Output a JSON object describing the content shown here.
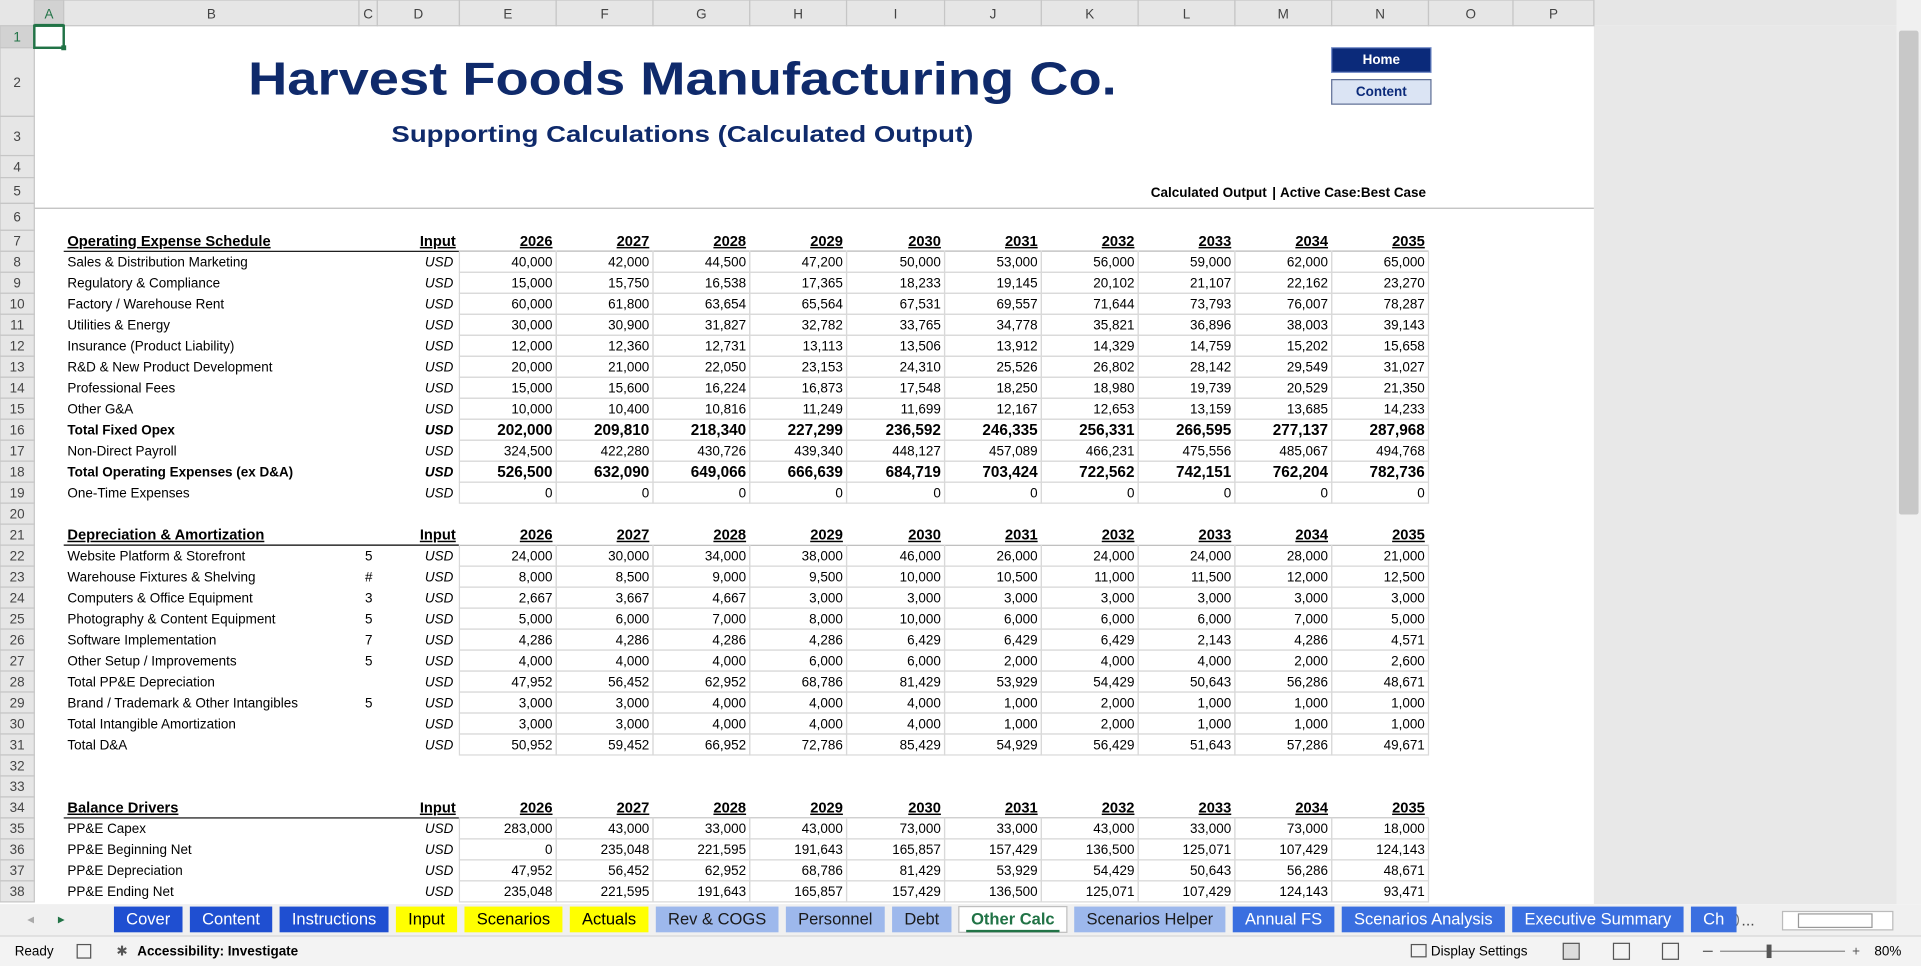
{
  "column_headers": [
    "A",
    "B",
    "C",
    "D",
    "E",
    "F",
    "G",
    "H",
    "I",
    "J",
    "K",
    "L",
    "M",
    "N",
    "O",
    "P"
  ],
  "row_numbers": [
    1,
    2,
    3,
    4,
    5,
    6,
    7,
    8,
    9,
    10,
    11,
    12,
    13,
    14,
    15,
    16,
    17,
    18,
    19,
    20,
    21,
    22,
    23,
    24,
    25,
    26,
    27,
    28,
    29,
    30,
    31,
    32,
    33,
    34,
    35,
    36,
    37,
    38
  ],
  "header": {
    "title": "Harvest Foods Manufacturing Co.",
    "subtitle": "Supporting Calculations (Calculated Output)",
    "status_label": "Calculated Output",
    "separator": "|",
    "active_case": "Active Case:Best Case"
  },
  "buttons": [
    "Home",
    "Content"
  ],
  "sections": [
    {
      "title": "Operating Expense Schedule",
      "input": "Input",
      "years": [
        2026,
        2027,
        2028,
        2029,
        2030,
        2031,
        2032,
        2033,
        2034,
        2035
      ],
      "rows": [
        {
          "label": "Sales & Distribution Marketing",
          "unit": "USD",
          "values": [
            "40,000",
            "42,000",
            "44,500",
            "47,200",
            "50,000",
            "53,000",
            "56,000",
            "59,000",
            "62,000",
            "65,000"
          ]
        },
        {
          "label": "Regulatory & Compliance",
          "unit": "USD",
          "values": [
            "15,000",
            "15,750",
            "16,538",
            "17,365",
            "18,233",
            "19,145",
            "20,102",
            "21,107",
            "22,162",
            "23,270"
          ]
        },
        {
          "label": "Factory / Warehouse Rent",
          "unit": "USD",
          "values": [
            "60,000",
            "61,800",
            "63,654",
            "65,564",
            "67,531",
            "69,557",
            "71,644",
            "73,793",
            "76,007",
            "78,287"
          ]
        },
        {
          "label": "Utilities & Energy",
          "unit": "USD",
          "values": [
            "30,000",
            "30,900",
            "31,827",
            "32,782",
            "33,765",
            "34,778",
            "35,821",
            "36,896",
            "38,003",
            "39,143"
          ]
        },
        {
          "label": "Insurance (Product Liability)",
          "unit": "USD",
          "values": [
            "12,000",
            "12,360",
            "12,731",
            "13,113",
            "13,506",
            "13,912",
            "14,329",
            "14,759",
            "15,202",
            "15,658"
          ]
        },
        {
          "label": "R&D & New Product Development",
          "unit": "USD",
          "values": [
            "20,000",
            "21,000",
            "22,050",
            "23,153",
            "24,310",
            "25,526",
            "26,802",
            "28,142",
            "29,549",
            "31,027"
          ]
        },
        {
          "label": "Professional Fees",
          "unit": "USD",
          "values": [
            "15,000",
            "15,600",
            "16,224",
            "16,873",
            "17,548",
            "18,250",
            "18,980",
            "19,739",
            "20,529",
            "21,350"
          ]
        },
        {
          "label": "Other G&A",
          "unit": "USD",
          "values": [
            "10,000",
            "10,400",
            "10,816",
            "11,249",
            "11,699",
            "12,167",
            "12,653",
            "13,159",
            "13,685",
            "14,233"
          ]
        },
        {
          "label": "Total Fixed Opex",
          "unit": "USD",
          "bold": true,
          "values": [
            "202,000",
            "209,810",
            "218,340",
            "227,299",
            "236,592",
            "246,335",
            "256,331",
            "266,595",
            "277,137",
            "287,968"
          ]
        },
        {
          "label": "Non-Direct Payroll",
          "unit": "USD",
          "values": [
            "324,500",
            "422,280",
            "430,726",
            "439,340",
            "448,127",
            "457,089",
            "466,231",
            "475,556",
            "485,067",
            "494,768"
          ]
        },
        {
          "label": "Total Operating Expenses (ex D&A)",
          "unit": "USD",
          "bold": true,
          "values": [
            "526,500",
            "632,090",
            "649,066",
            "666,639",
            "684,719",
            "703,424",
            "722,562",
            "742,151",
            "762,204",
            "782,736"
          ]
        },
        {
          "label": "One-Time Expenses",
          "unit": "USD",
          "values": [
            "0",
            "0",
            "0",
            "0",
            "0",
            "0",
            "0",
            "0",
            "0",
            "0"
          ]
        }
      ]
    },
    {
      "title": "Depreciation & Amortization",
      "input": "Input",
      "years": [
        2026,
        2027,
        2028,
        2029,
        2030,
        2031,
        2032,
        2033,
        2034,
        2035
      ],
      "rows": [
        {
          "label": "Website Platform & Storefront",
          "life": "5",
          "unit": "USD",
          "values": [
            "24,000",
            "30,000",
            "34,000",
            "38,000",
            "46,000",
            "26,000",
            "24,000",
            "24,000",
            "28,000",
            "21,000"
          ]
        },
        {
          "label": "Warehouse Fixtures & Shelving",
          "life": "#",
          "unit": "USD",
          "values": [
            "8,000",
            "8,500",
            "9,000",
            "9,500",
            "10,000",
            "10,500",
            "11,000",
            "11,500",
            "12,000",
            "12,500"
          ]
        },
        {
          "label": "Computers & Office Equipment",
          "life": "3",
          "unit": "USD",
          "values": [
            "2,667",
            "3,667",
            "4,667",
            "3,000",
            "3,000",
            "3,000",
            "3,000",
            "3,000",
            "3,000",
            "3,000"
          ]
        },
        {
          "label": "Photography & Content Equipment",
          "life": "5",
          "unit": "USD",
          "values": [
            "5,000",
            "6,000",
            "7,000",
            "8,000",
            "10,000",
            "6,000",
            "6,000",
            "6,000",
            "7,000",
            "5,000"
          ]
        },
        {
          "label": "Software Implementation",
          "life": "7",
          "unit": "USD",
          "values": [
            "4,286",
            "4,286",
            "4,286",
            "4,286",
            "6,429",
            "6,429",
            "6,429",
            "2,143",
            "4,286",
            "4,571"
          ]
        },
        {
          "label": "Other Setup / Improvements",
          "life": "5",
          "unit": "USD",
          "values": [
            "4,000",
            "4,000",
            "4,000",
            "6,000",
            "6,000",
            "2,000",
            "4,000",
            "4,000",
            "2,000",
            "2,600"
          ]
        },
        {
          "label": "Total PP&E Depreciation",
          "unit": "USD",
          "values": [
            "47,952",
            "56,452",
            "62,952",
            "68,786",
            "81,429",
            "53,929",
            "54,429",
            "50,643",
            "56,286",
            "48,671"
          ]
        },
        {
          "label": "Brand / Trademark & Other Intangibles",
          "life": "5",
          "unit": "USD",
          "values": [
            "3,000",
            "3,000",
            "4,000",
            "4,000",
            "4,000",
            "1,000",
            "2,000",
            "1,000",
            "1,000",
            "1,000"
          ]
        },
        {
          "label": "Total Intangible Amortization",
          "unit": "USD",
          "values": [
            "3,000",
            "3,000",
            "4,000",
            "4,000",
            "4,000",
            "1,000",
            "2,000",
            "1,000",
            "1,000",
            "1,000"
          ]
        },
        {
          "label": "Total D&A",
          "unit": "USD",
          "values": [
            "50,952",
            "59,452",
            "66,952",
            "72,786",
            "85,429",
            "54,929",
            "56,429",
            "51,643",
            "57,286",
            "49,671"
          ]
        }
      ]
    },
    {
      "title": "Balance Drivers",
      "input": "Input",
      "years": [
        2026,
        2027,
        2028,
        2029,
        2030,
        2031,
        2032,
        2033,
        2034,
        2035
      ],
      "rows": [
        {
          "label": "PP&E Capex",
          "unit": "USD",
          "values": [
            "283,000",
            "43,000",
            "33,000",
            "43,000",
            "73,000",
            "33,000",
            "43,000",
            "33,000",
            "73,000",
            "18,000"
          ]
        },
        {
          "label": "PP&E Beginning Net",
          "unit": "USD",
          "values": [
            "0",
            "235,048",
            "221,595",
            "191,643",
            "165,857",
            "157,429",
            "136,500",
            "125,071",
            "107,429",
            "124,143"
          ]
        },
        {
          "label": "PP&E Depreciation",
          "unit": "USD",
          "values": [
            "47,952",
            "56,452",
            "62,952",
            "68,786",
            "81,429",
            "53,929",
            "54,429",
            "50,643",
            "56,286",
            "48,671"
          ]
        },
        {
          "label": "PP&E Ending Net",
          "unit": "USD",
          "values": [
            "235,048",
            "221,595",
            "191,643",
            "165,857",
            "157,429",
            "136,500",
            "125,071",
            "107,429",
            "124,143",
            "93,471"
          ]
        }
      ]
    }
  ],
  "sheet_tabs": [
    {
      "name": "Cover",
      "color": "#1f4fd1",
      "text_color": "#ffffff"
    },
    {
      "name": "Content",
      "color": "#1f4fd1",
      "text_color": "#ffffff"
    },
    {
      "name": "Instructions",
      "color": "#1f4fd1",
      "text_color": "#ffffff"
    },
    {
      "name": "Input",
      "color": "#ffff00",
      "text_color": "#000000"
    },
    {
      "name": "Scenarios",
      "color": "#ffff00",
      "text_color": "#000000"
    },
    {
      "name": "Actuals",
      "color": "#ffff00",
      "text_color": "#000000"
    },
    {
      "name": "Rev & COGS",
      "color": "#9db8ec",
      "text_color": "#1a1a1a"
    },
    {
      "name": "Personnel",
      "color": "#9db8ec",
      "text_color": "#1a1a1a"
    },
    {
      "name": "Debt",
      "color": "#9db8ec",
      "text_color": "#1a1a1a"
    },
    {
      "name": "Other Calc",
      "color": "#ffffff",
      "text_color": "#217346",
      "active": true
    },
    {
      "name": "Scenarios Helper",
      "color": "#9db8ec",
      "text_color": "#1a1a1a"
    },
    {
      "name": "Annual FS",
      "color": "#3a6fe0",
      "text_color": "#ffffff"
    },
    {
      "name": "Scenarios Analysis",
      "color": "#3a6fe0",
      "text_color": "#ffffff"
    },
    {
      "name": "Executive Summary",
      "color": "#3a6fe0",
      "text_color": "#ffffff"
    },
    {
      "name": "Ch",
      "color": "#3a6fe0",
      "text_color": "#ffffff"
    }
  ],
  "overflow_marker": "...",
  "status_bar": {
    "mode": "Ready",
    "accessibility": "Accessibility: Investigate",
    "display_settings": "Display Settings",
    "zoom": "80%"
  }
}
